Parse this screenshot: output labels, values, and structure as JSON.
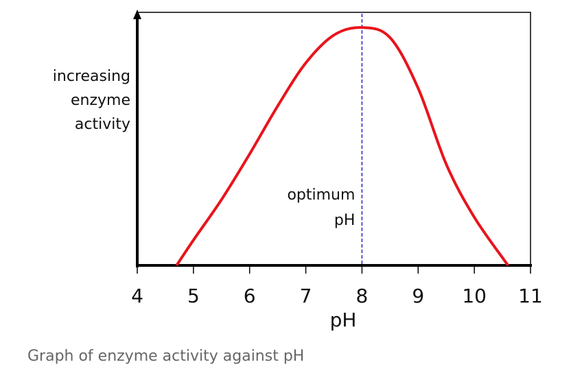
{
  "chart_data": {
    "type": "line",
    "ylabel": [
      "increasing",
      "enzyme",
      "activity"
    ],
    "xlabel": "pH",
    "caption": "Graph of enzyme activity against pH",
    "annotation": {
      "text": [
        "optimum",
        "pH"
      ],
      "x": 8,
      "color": "#2222cc"
    },
    "xlim": [
      4,
      11
    ],
    "xticks": [
      4,
      5,
      6,
      7,
      8,
      9,
      10,
      11
    ],
    "ylim": [
      0,
      100
    ],
    "x": [
      4.7,
      5,
      5.5,
      6,
      6.5,
      7,
      7.5,
      8,
      8.5,
      9,
      9.5,
      10,
      10.6
    ],
    "series": [
      {
        "color": "#e8141c",
        "values": [
          0,
          10,
          26,
          44,
          63,
          80,
          91,
          94,
          90,
          70,
          40,
          19,
          0
        ]
      }
    ]
  }
}
